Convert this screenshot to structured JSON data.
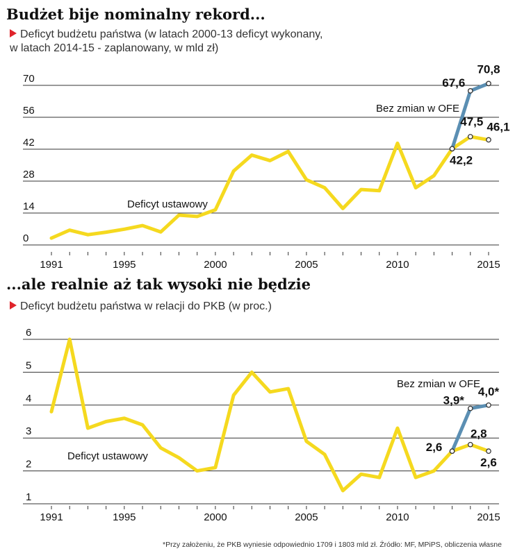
{
  "chart_data": [
    {
      "type": "line",
      "title": "Budżet bije nominalny rekord...",
      "subtitle_line1": "Deficyt budżetu państwa (w latach 2000-13 deficyt wykonany,",
      "subtitle_line2": "w latach 2014-15 - zaplanowany, w mld zł)",
      "ylim": [
        0,
        70
      ],
      "yticks": [
        "0",
        "14",
        "28",
        "42",
        "56",
        "70"
      ],
      "xlim": [
        1991,
        2015
      ],
      "xticks": [
        "1991",
        "1995",
        "2000",
        "2005",
        "2010",
        "2015"
      ],
      "series": [
        {
          "name": "Deficyt ustawowy",
          "color": "#f5d91f",
          "x": [
            1991,
            1992,
            1993,
            1994,
            1995,
            1996,
            1997,
            1998,
            1999,
            2000,
            2001,
            2002,
            2003,
            2004,
            2005,
            2006,
            2007,
            2008,
            2009,
            2010,
            2011,
            2012,
            2013,
            2014,
            2015
          ],
          "y": [
            3,
            6.5,
            4.5,
            5.6,
            6.9,
            8.5,
            5.7,
            13.1,
            12.5,
            15.4,
            32.4,
            39.4,
            37.0,
            41.0,
            28.6,
            25.1,
            16.0,
            24.3,
            23.8,
            44.6,
            25.1,
            30.4,
            42.2,
            47.5,
            46.1
          ]
        },
        {
          "name": "Bez zmian w OFE",
          "color": "#5b8fb3",
          "x": [
            2013,
            2014,
            2015
          ],
          "y": [
            42.2,
            67.6,
            70.8
          ]
        }
      ],
      "labels": [
        {
          "text": "67,6",
          "x": 2014,
          "y": 67.6
        },
        {
          "text": "70,8",
          "x": 2015,
          "y": 70.8
        },
        {
          "text": "47,5",
          "x": 2014,
          "y": 47.5
        },
        {
          "text": "46,1",
          "x": 2015,
          "y": 46.1
        },
        {
          "text": "42,2",
          "x": 2013,
          "y": 42.2
        }
      ]
    },
    {
      "type": "line",
      "title": "...ale realnie aż tak wysoki nie będzie",
      "subtitle_line1": "Deficyt budżetu państwa w relacji do PKB (w proc.)",
      "ylim": [
        1,
        6
      ],
      "yticks": [
        "1",
        "2",
        "3",
        "4",
        "5",
        "6"
      ],
      "xlim": [
        1991,
        2015
      ],
      "xticks": [
        "1991",
        "1995",
        "2000",
        "2005",
        "2010",
        "2015"
      ],
      "series": [
        {
          "name": "Deficyt ustawowy",
          "color": "#f5d91f",
          "x": [
            1991,
            1992,
            1993,
            1994,
            1995,
            1996,
            1997,
            1998,
            1999,
            2000,
            2001,
            2002,
            2003,
            2004,
            2005,
            2006,
            2007,
            2008,
            2009,
            2010,
            2011,
            2012,
            2013,
            2014,
            2015
          ],
          "y": [
            3.8,
            6.0,
            3.3,
            3.5,
            3.6,
            3.4,
            2.7,
            2.4,
            2.0,
            2.1,
            4.3,
            5.0,
            4.4,
            4.5,
            2.9,
            2.5,
            1.4,
            1.9,
            1.8,
            3.3,
            1.8,
            2.0,
            2.6,
            2.8,
            2.6
          ]
        },
        {
          "name": "Bez zmian w OFE",
          "color": "#5b8fb3",
          "x": [
            2013,
            2014,
            2015
          ],
          "y": [
            2.6,
            3.9,
            4.0
          ]
        }
      ],
      "labels": [
        {
          "text": "3,9*",
          "x": 2014,
          "y": 3.9
        },
        {
          "text": "4,0*",
          "x": 2015,
          "y": 4.0
        },
        {
          "text": "2,8",
          "x": 2014,
          "y": 2.8
        },
        {
          "text": "2,6",
          "x": 2015,
          "y": 2.6
        },
        {
          "text": "2,6",
          "x": 2013,
          "y": 2.6
        }
      ]
    }
  ],
  "footnote": "*Przy założeniu, że PKB wyniesie odpowiednio 1709 i 1803 mld zł. Źródło: MF, MPiPS, obliczenia własne"
}
